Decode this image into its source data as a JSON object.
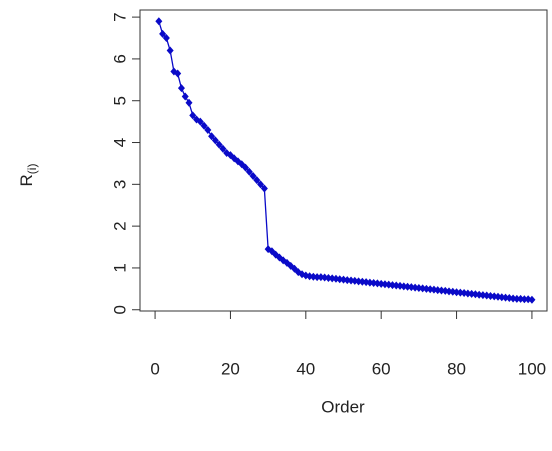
{
  "chart_data": {
    "type": "line",
    "xlabel": "Order",
    "ylabel": {
      "text": "R",
      "subscript": "(i)"
    },
    "x": [
      1,
      2,
      3,
      4,
      5,
      6,
      7,
      8,
      9,
      10,
      11,
      12,
      13,
      14,
      15,
      16,
      17,
      18,
      19,
      20,
      21,
      22,
      23,
      24,
      25,
      26,
      27,
      28,
      29,
      30,
      31,
      32,
      33,
      34,
      35,
      36,
      37,
      38,
      39,
      40,
      41,
      42,
      43,
      44,
      45,
      46,
      47,
      48,
      49,
      50,
      51,
      52,
      53,
      54,
      55,
      56,
      57,
      58,
      59,
      60,
      61,
      62,
      63,
      64,
      65,
      66,
      67,
      68,
      69,
      70,
      71,
      72,
      73,
      74,
      75,
      76,
      77,
      78,
      79,
      80,
      81,
      82,
      83,
      84,
      85,
      86,
      87,
      88,
      89,
      90,
      91,
      92,
      93,
      94,
      95,
      96,
      97,
      98,
      99,
      100
    ],
    "series": [
      {
        "color": "#0a0ac8",
        "values": [
          6.9,
          6.6,
          6.5,
          6.2,
          5.7,
          5.65,
          5.3,
          5.1,
          4.95,
          4.65,
          4.55,
          4.5,
          4.4,
          4.3,
          4.15,
          4.05,
          3.95,
          3.85,
          3.75,
          3.7,
          3.62,
          3.55,
          3.48,
          3.4,
          3.3,
          3.2,
          3.1,
          3.0,
          2.9,
          1.45,
          1.4,
          1.32,
          1.25,
          1.18,
          1.12,
          1.05,
          0.98,
          0.9,
          0.85,
          0.82,
          0.8,
          0.79,
          0.78,
          0.78,
          0.77,
          0.76,
          0.75,
          0.74,
          0.73,
          0.72,
          0.71,
          0.7,
          0.69,
          0.68,
          0.67,
          0.66,
          0.65,
          0.64,
          0.63,
          0.62,
          0.61,
          0.6,
          0.59,
          0.58,
          0.57,
          0.56,
          0.55,
          0.54,
          0.53,
          0.52,
          0.51,
          0.5,
          0.49,
          0.48,
          0.47,
          0.46,
          0.45,
          0.44,
          0.43,
          0.42,
          0.41,
          0.4,
          0.39,
          0.38,
          0.37,
          0.36,
          0.35,
          0.34,
          0.33,
          0.32,
          0.31,
          0.3,
          0.29,
          0.28,
          0.27,
          0.26,
          0.26,
          0.25,
          0.25,
          0.24
        ]
      }
    ],
    "xlim": [
      -4,
      104
    ],
    "xticks": [
      0,
      20,
      40,
      60,
      80,
      100
    ],
    "ylim": [
      -0.03,
      7.17
    ],
    "yticks": [
      0,
      1,
      2,
      3,
      4,
      5,
      6,
      7
    ]
  }
}
